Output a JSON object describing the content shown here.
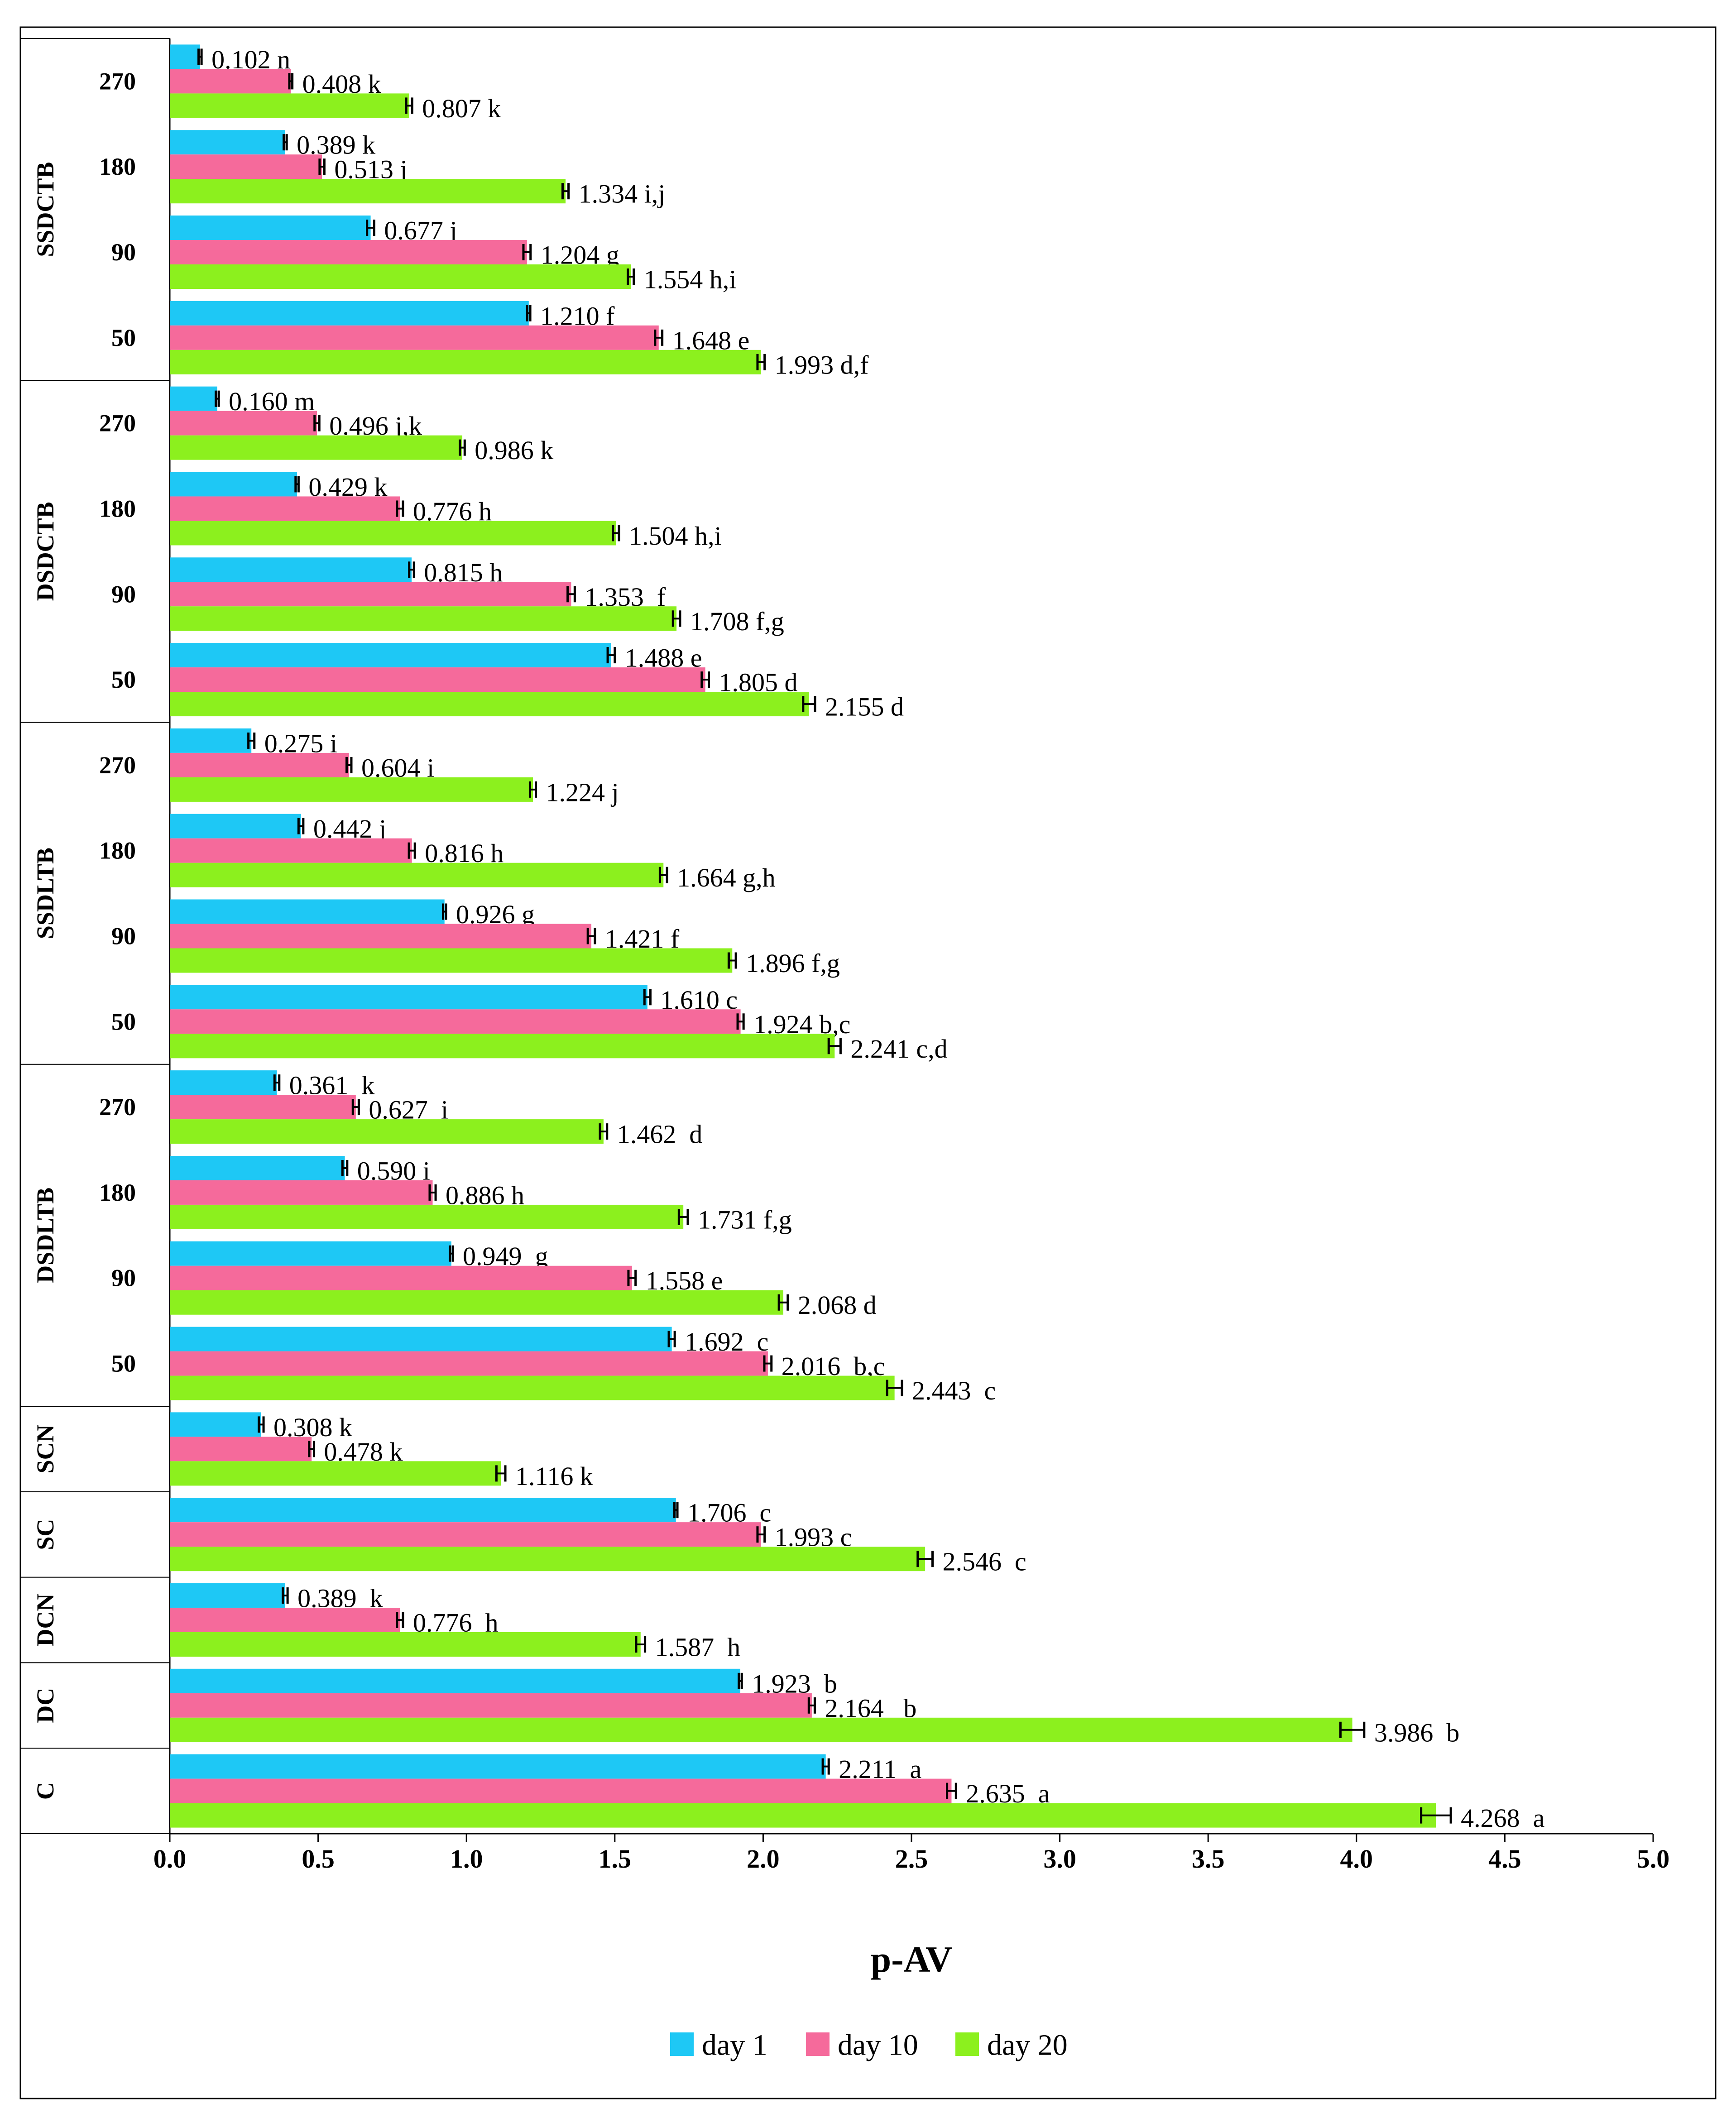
{
  "chart_data": {
    "type": "bar",
    "orientation": "horizontal",
    "title": "",
    "xlabel": "p-AV",
    "ylabel": "",
    "xlim": [
      0,
      5
    ],
    "xticks": [
      "0.0",
      "0.5",
      "1.0",
      "1.5",
      "2.0",
      "2.5",
      "3.0",
      "3.5",
      "4.0",
      "4.5",
      "5.0"
    ],
    "grid": false,
    "legend_position": "bottom",
    "colors": {
      "day 1": "#1ec8f5",
      "day 10": "#f56a9b",
      "day 20": "#8cf01e"
    },
    "series": [
      {
        "name": "day 1",
        "color": "#1ec8f5"
      },
      {
        "name": "day 10",
        "color": "#f56a9b"
      },
      {
        "name": "day 20",
        "color": "#8cf01e"
      }
    ],
    "groups": [
      {
        "name": "SSDCTB",
        "categories": [
          {
            "label": "270",
            "values": [
              0.102,
              0.408,
              0.807
            ],
            "errors": [
              0.005,
              0.005,
              0.01
            ],
            "text": [
              "0.102 n",
              "0.408 k",
              "0.807 k"
            ]
          },
          {
            "label": "180",
            "values": [
              0.389,
              0.513,
              1.334
            ],
            "errors": [
              0.005,
              0.008,
              0.01
            ],
            "text": [
              "0.389 k",
              "0.513 j",
              "1.334 i,j"
            ]
          },
          {
            "label": "90",
            "values": [
              0.677,
              1.204,
              1.554
            ],
            "errors": [
              0.012,
              0.012,
              0.01
            ],
            "text": [
              "0.677 j",
              "1.204 g",
              "1.554 h,i"
            ]
          },
          {
            "label": "50",
            "values": [
              1.21,
              1.648,
              1.993
            ],
            "errors": [
              0.005,
              0.012,
              0.012
            ],
            "text": [
              "1.210 f",
              "1.648 e",
              "1.993 d,f"
            ]
          }
        ]
      },
      {
        "name": "DSDCTB",
        "categories": [
          {
            "label": "270",
            "values": [
              0.16,
              0.496,
              0.986
            ],
            "errors": [
              0.005,
              0.008,
              0.008
            ],
            "text": [
              "0.160 m",
              "0.496 j,k",
              "0.986 k"
            ]
          },
          {
            "label": "180",
            "values": [
              0.429,
              0.776,
              1.504
            ],
            "errors": [
              0.005,
              0.01,
              0.01
            ],
            "text": [
              "0.429 k",
              "0.776 h",
              "1.504 h,i"
            ]
          },
          {
            "label": "90",
            "values": [
              0.815,
              1.353,
              1.708
            ],
            "errors": [
              0.008,
              0.012,
              0.012
            ],
            "text": [
              "0.815 h",
              "1.353  f",
              "1.708 f,g"
            ]
          },
          {
            "label": "50",
            "values": [
              1.488,
              1.805,
              2.155
            ],
            "errors": [
              0.012,
              0.012,
              0.02
            ],
            "text": [
              "1.488 e",
              "1.805 d",
              "2.155 d"
            ]
          }
        ]
      },
      {
        "name": "SSDLTB",
        "categories": [
          {
            "label": "270",
            "values": [
              0.275,
              0.604,
              1.224
            ],
            "errors": [
              0.01,
              0.008,
              0.01
            ],
            "text": [
              "0.275 i",
              "0.604 i",
              "1.224 j"
            ]
          },
          {
            "label": "180",
            "values": [
              0.442,
              0.816,
              1.664
            ],
            "errors": [
              0.008,
              0.01,
              0.012
            ],
            "text": [
              "0.442 j",
              "0.816 h",
              "1.664 g,h"
            ]
          },
          {
            "label": "90",
            "values": [
              0.926,
              1.421,
              1.896
            ],
            "errors": [
              0.005,
              0.012,
              0.012
            ],
            "text": [
              "0.926 g",
              "1.421 f",
              "1.896 f,g"
            ]
          },
          {
            "label": "50",
            "values": [
              1.61,
              1.924,
              2.241
            ],
            "errors": [
              0.01,
              0.01,
              0.02
            ],
            "text": [
              "1.610 c",
              "1.924 b,c",
              "2.241 c,d"
            ]
          }
        ]
      },
      {
        "name": "DSDLTB",
        "categories": [
          {
            "label": "270",
            "values": [
              0.361,
              0.627,
              1.462
            ],
            "errors": [
              0.008,
              0.01,
              0.012
            ],
            "text": [
              "0.361  k",
              "0.627  i",
              "1.462  d"
            ]
          },
          {
            "label": "180",
            "values": [
              0.59,
              0.886,
              1.731
            ],
            "errors": [
              0.008,
              0.01,
              0.015
            ],
            "text": [
              "0.590 i",
              "0.886 h",
              "1.731 f,g"
            ]
          },
          {
            "label": "90",
            "values": [
              0.949,
              1.558,
              2.068
            ],
            "errors": [
              0.005,
              0.012,
              0.015
            ],
            "text": [
              "0.949  g",
              "1.558 e",
              "2.068 d"
            ]
          },
          {
            "label": "50",
            "values": [
              1.692,
              2.016,
              2.443
            ],
            "errors": [
              0.01,
              0.012,
              0.025
            ],
            "text": [
              "1.692  c",
              "2.016  b,c",
              "2.443  c"
            ]
          }
        ]
      },
      {
        "name": "SCN",
        "categories": [
          {
            "label": "",
            "values": [
              0.308,
              0.478,
              1.116
            ],
            "errors": [
              0.008,
              0.008,
              0.015
            ],
            "text": [
              "0.308 k",
              "0.478 k",
              "1.116 k"
            ]
          }
        ]
      },
      {
        "name": "SC",
        "categories": [
          {
            "label": "",
            "values": [
              1.706,
              1.993,
              2.546
            ],
            "errors": [
              0.005,
              0.012,
              0.025
            ],
            "text": [
              "1.706  c",
              "1.993 c",
              "2.546  c"
            ]
          }
        ]
      },
      {
        "name": "DCN",
        "categories": [
          {
            "label": "",
            "values": [
              0.389,
              0.776,
              1.587
            ],
            "errors": [
              0.008,
              0.01,
              0.015
            ],
            "text": [
              "0.389  k",
              "0.776  h",
              "1.587  h"
            ]
          }
        ]
      },
      {
        "name": "DC",
        "categories": [
          {
            "label": "",
            "values": [
              1.923,
              2.164,
              3.986
            ],
            "errors": [
              0.005,
              0.01,
              0.04
            ],
            "text": [
              "1.923  b",
              "2.164   b",
              "3.986  b"
            ]
          }
        ]
      },
      {
        "name": "C",
        "categories": [
          {
            "label": "",
            "values": [
              2.211,
              2.635,
              4.268
            ],
            "errors": [
              0.01,
              0.015,
              0.05
            ],
            "text": [
              "2.211  a",
              "2.635  a",
              "4.268  a"
            ]
          }
        ]
      }
    ]
  }
}
